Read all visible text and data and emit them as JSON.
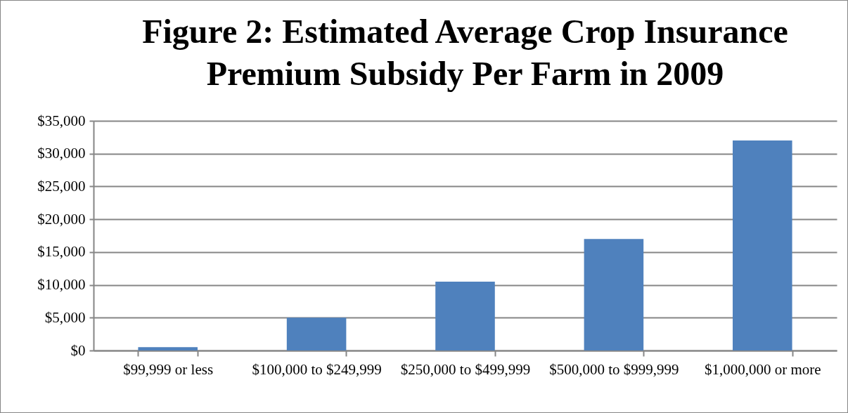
{
  "chart_data": {
    "type": "bar",
    "title": "Figure 2: Estimated Average Crop Insurance Premium Subsidy Per Farm in 2009",
    "categories": [
      "$99,999 or less",
      "$100,000 to $249,999",
      "$250,000 to $499,999",
      "$500,000 to $999,999",
      "$1,000,000 or more"
    ],
    "values": [
      500,
      5000,
      10500,
      17000,
      32000
    ],
    "color": "#4f81bd",
    "ylim": [
      0,
      35000
    ],
    "yticks": [
      {
        "value": 0,
        "label": "$0"
      },
      {
        "value": 5000,
        "label": "$5,000"
      },
      {
        "value": 10000,
        "label": "$10,000"
      },
      {
        "value": 15000,
        "label": "$15,000"
      },
      {
        "value": 20000,
        "label": "$20,000"
      },
      {
        "value": 25000,
        "label": "$25,000"
      },
      {
        "value": 30000,
        "label": "$30,000"
      },
      {
        "value": 35000,
        "label": "$35,000"
      }
    ],
    "grid": "y"
  }
}
